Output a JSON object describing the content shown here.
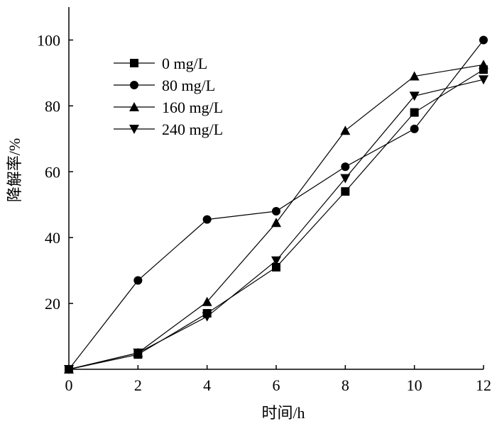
{
  "chart_data": {
    "type": "line",
    "title": "",
    "xlabel": "时间/h",
    "ylabel": "降解率/%",
    "xlim": [
      0,
      12
    ],
    "ylim": [
      0,
      110
    ],
    "xticks": [
      0,
      2,
      4,
      6,
      8,
      10,
      12
    ],
    "yticks": [
      20,
      40,
      60,
      80,
      100
    ],
    "x_tick_labels": [
      "0",
      "2",
      "4",
      "6",
      "8",
      "10",
      "12"
    ],
    "y_tick_labels": [
      "20",
      "40",
      "60",
      "80",
      "100"
    ],
    "grid": false,
    "legend_position": "upper-left",
    "x": [
      0,
      2,
      4,
      6,
      8,
      10,
      12
    ],
    "series": [
      {
        "name": "0 mg/L",
        "marker": "square",
        "values": [
          0,
          4.5,
          17,
          31,
          54,
          78,
          91
        ]
      },
      {
        "name": "80 mg/L",
        "marker": "circle",
        "values": [
          0,
          27,
          45.5,
          48,
          61.5,
          73,
          100
        ]
      },
      {
        "name": "160 mg/L",
        "marker": "triangle-up",
        "values": [
          0,
          5,
          20.5,
          44.5,
          72.5,
          89,
          92.5
        ]
      },
      {
        "name": "240 mg/L",
        "marker": "triangle-down",
        "values": [
          0,
          5,
          16,
          33,
          58,
          83,
          88
        ]
      }
    ]
  }
}
